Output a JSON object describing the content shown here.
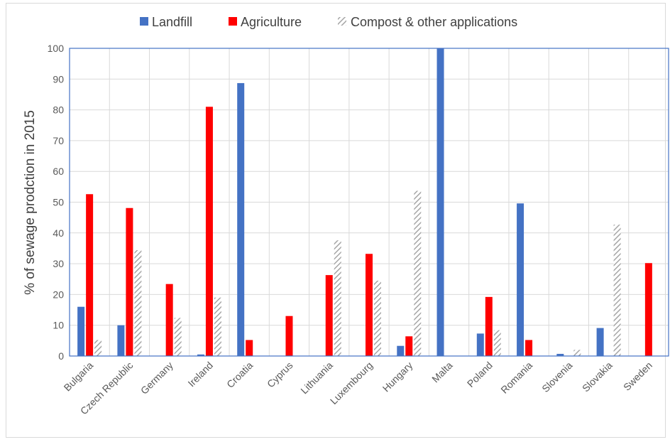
{
  "chart_data": {
    "type": "bar",
    "ylabel": "% of sewage prodction in 2015",
    "ylim": [
      0,
      100
    ],
    "yticks": [
      0,
      10,
      20,
      30,
      40,
      50,
      60,
      70,
      80,
      90,
      100
    ],
    "grid": true,
    "legend_position": "top",
    "categories": [
      "Bulgaria",
      "Czech Republic",
      "Germany",
      "Ireland",
      "Croatia",
      "Cyprus",
      "Lithuania",
      "Luxembourg",
      "Hungary",
      "Malta",
      "Poland",
      "Romania",
      "Slovenia",
      "Slovakia",
      "Sweden"
    ],
    "series": [
      {
        "name": "Landfill",
        "color": "#4472c4",
        "pattern": "solid",
        "values": [
          16,
          10,
          0,
          0.5,
          88.7,
          0,
          0,
          0,
          3.3,
          100,
          7.3,
          49.6,
          0.7,
          9.1,
          0
        ]
      },
      {
        "name": "Agriculture",
        "color": "#ff0000",
        "pattern": "solid",
        "values": [
          52.6,
          48.1,
          23.4,
          81,
          5.2,
          13,
          26.3,
          33.2,
          6.4,
          0,
          19.2,
          5.2,
          0,
          0,
          30.2
        ]
      },
      {
        "name": "Compost & other applications",
        "color": "#a6a6a6",
        "pattern": "diagonal-hatch",
        "values": [
          5.2,
          34.4,
          12.4,
          19,
          0,
          0,
          37.6,
          24.5,
          53.7,
          0,
          8.4,
          0,
          2,
          42.7,
          0
        ]
      }
    ]
  }
}
